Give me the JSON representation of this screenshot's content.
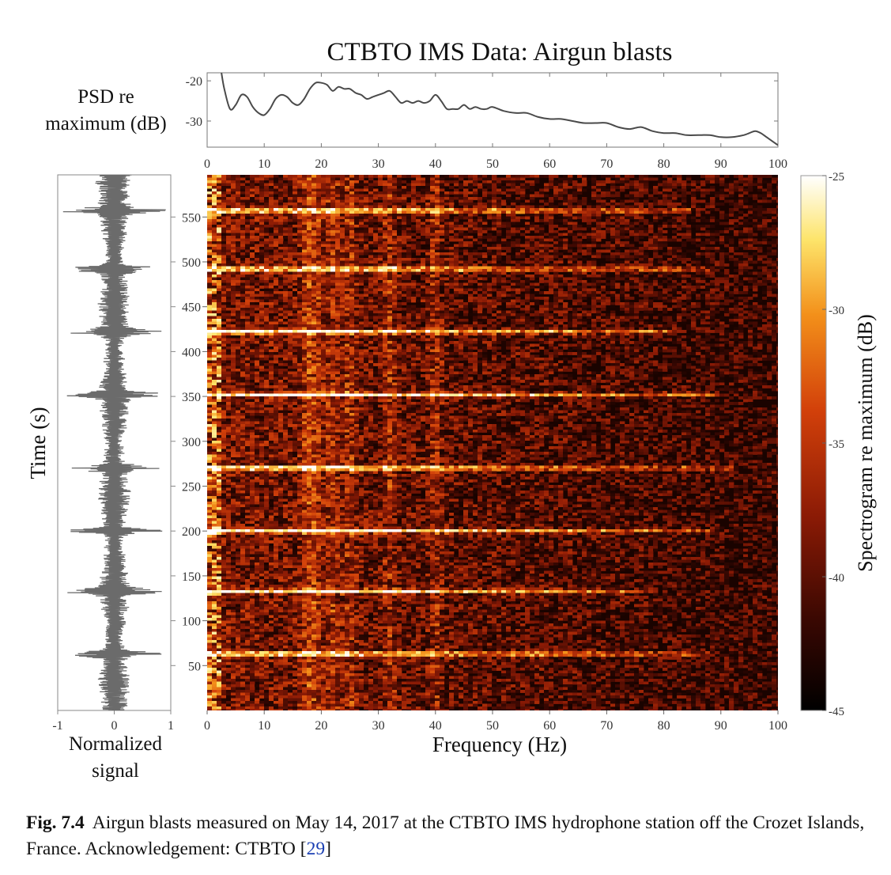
{
  "chart_data": [
    {
      "id": "psd",
      "type": "line",
      "title": "CTBTO IMS Data: Airgun blasts",
      "ylabel_lines": [
        "PSD re",
        "maximum (dB)"
      ],
      "xlim": [
        0,
        100
      ],
      "ylim": [
        -36.5,
        -18
      ],
      "xticks": [
        0,
        10,
        20,
        30,
        40,
        50,
        60,
        70,
        80,
        90,
        100
      ],
      "yticks": [
        -20,
        -30
      ],
      "x": [
        2.5,
        3,
        4,
        5,
        6,
        7,
        8,
        9,
        10,
        11,
        12,
        13,
        14,
        15,
        16,
        17,
        18,
        19,
        20,
        21,
        22,
        23,
        24,
        25,
        26,
        27,
        28,
        29,
        30,
        31,
        32,
        33,
        34,
        35,
        36,
        37,
        38,
        39,
        40,
        41,
        42,
        43,
        44,
        45,
        46,
        47,
        48,
        49,
        50,
        52,
        54,
        56,
        58,
        60,
        62,
        64,
        66,
        68,
        70,
        72,
        74,
        76,
        78,
        80,
        82,
        84,
        86,
        88,
        90,
        92,
        94,
        95,
        96,
        97,
        98,
        99,
        100
      ],
      "values": [
        -18,
        -22,
        -27,
        -26,
        -23.5,
        -24,
        -26.5,
        -28,
        -28.5,
        -27,
        -24.5,
        -23.5,
        -24,
        -25.5,
        -26,
        -24.5,
        -22,
        -20.5,
        -20.5,
        -21,
        -22.5,
        -21.5,
        -22,
        -22,
        -23,
        -23.5,
        -24.5,
        -24,
        -23.5,
        -23,
        -22.5,
        -24,
        -25.5,
        -25,
        -25.5,
        -25,
        -25.5,
        -25,
        -23.5,
        -25,
        -27,
        -27,
        -27,
        -26,
        -27,
        -26.5,
        -27,
        -27,
        -26.5,
        -27.5,
        -28,
        -28,
        -29,
        -29.5,
        -29.5,
        -30,
        -30.5,
        -30.5,
        -30.5,
        -31.5,
        -32,
        -31.5,
        -32.5,
        -33,
        -33,
        -33.5,
        -33.5,
        -33.5,
        -34,
        -34,
        -33.5,
        -33,
        -32.5,
        -33,
        -34,
        -35,
        -36
      ]
    },
    {
      "id": "signal",
      "type": "line",
      "xlabel_lines": [
        "Normalized",
        "signal"
      ],
      "xlim": [
        -1,
        1
      ],
      "xticks": [
        -1,
        0,
        1
      ],
      "burst_times": [
        63,
        133,
        200,
        270,
        352,
        422,
        492,
        557
      ],
      "note": "time series of normalized signal vs. time (s); amplitude peaks at each airgun blast"
    },
    {
      "id": "spectrogram",
      "type": "heatmap",
      "xlabel": "Frequency (Hz)",
      "ylabel": "Time (s)",
      "xlim": [
        0,
        100
      ],
      "ylim": [
        0,
        597
      ],
      "xticks": [
        0,
        10,
        20,
        30,
        40,
        50,
        60,
        70,
        80,
        90,
        100
      ],
      "yticks": [
        50,
        100,
        150,
        200,
        250,
        300,
        350,
        400,
        450,
        500,
        550
      ],
      "blast_times": [
        63,
        133,
        200,
        270,
        352,
        422,
        492,
        557
      ],
      "blast_extent_hz": [
        88,
        78,
        88,
        92,
        90,
        82,
        88,
        85
      ],
      "bright_bands_hz": [
        17.5,
        19,
        22,
        25,
        32,
        40
      ],
      "colormap": [
        "#000000",
        "#3a0802",
        "#8a1a05",
        "#d2400a",
        "#f3901a",
        "#fde46a",
        "#ffffff"
      ]
    },
    {
      "id": "colorbar",
      "type": "colorbar",
      "label": "Spectrogram re maximum (dB)",
      "lim": [
        -45,
        -25
      ],
      "ticks": [
        -25,
        -30,
        -35,
        -40,
        -45
      ]
    }
  ],
  "caption": {
    "label": "Fig. 7.4",
    "text": "Airgun blasts measured on May 14, 2017 at the CTBTO IMS hydrophone station off the Crozet Islands, France. Acknowledgement: CTBTO [",
    "ref": "29",
    "text_end": "]"
  }
}
